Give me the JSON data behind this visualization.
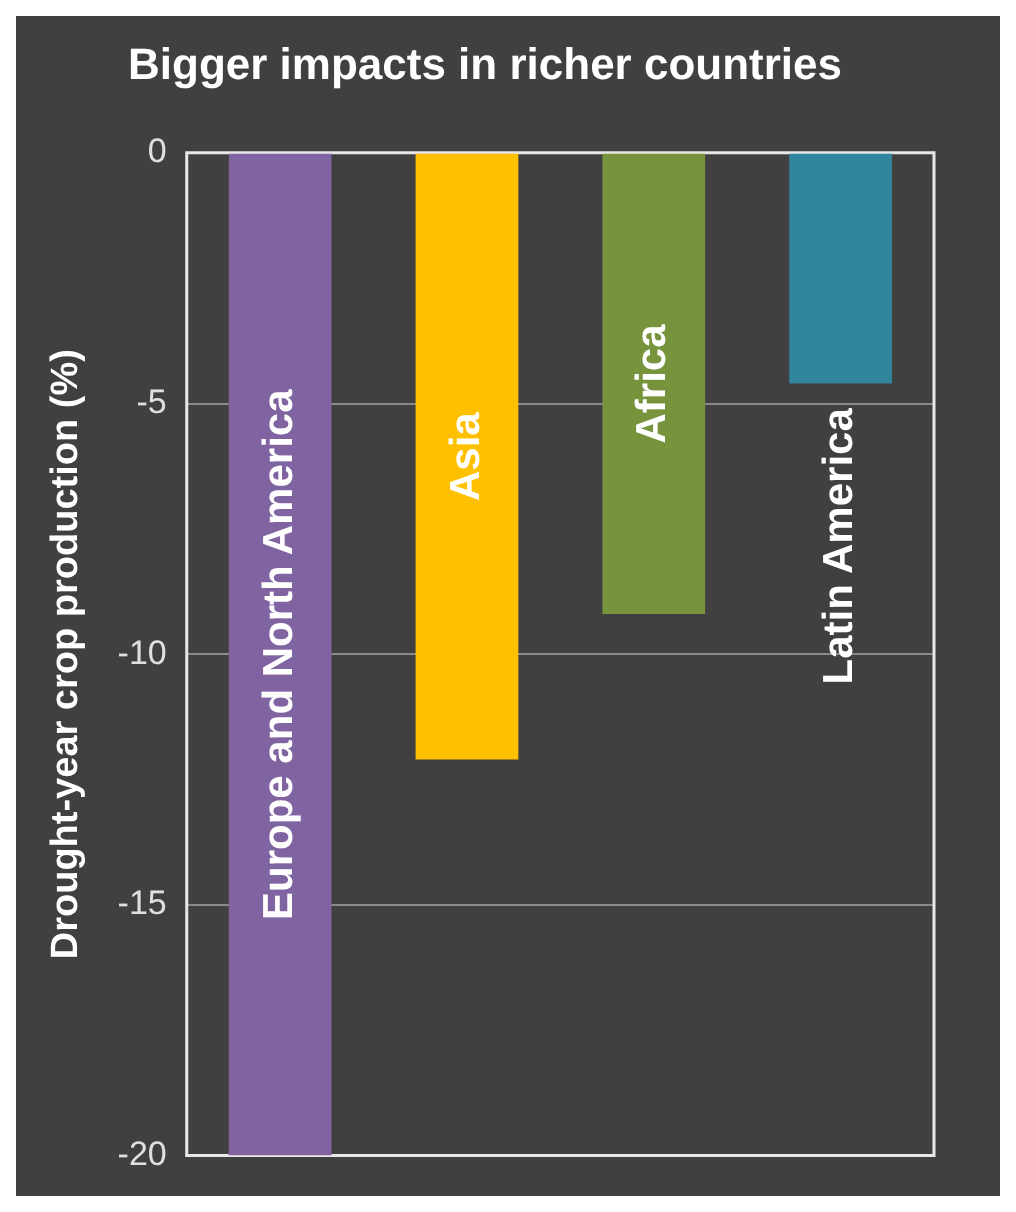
{
  "chart_data": {
    "type": "bar",
    "title": "Bigger impacts in richer countries",
    "ylabel": "Drought-year crop production (%)",
    "categories": [
      "Europe and North America",
      "Asia",
      "Africa",
      "Latin America"
    ],
    "values": [
      -20,
      -12.1,
      -9.2,
      -4.6
    ],
    "colors": [
      "#8064a2",
      "#ffc000",
      "#77933c",
      "#31859c"
    ],
    "ylim": [
      -20,
      0
    ],
    "yticks": [
      -20,
      -15,
      -10,
      -5,
      0
    ],
    "grid": "y",
    "legend": false,
    "tick_labels": "y"
  }
}
